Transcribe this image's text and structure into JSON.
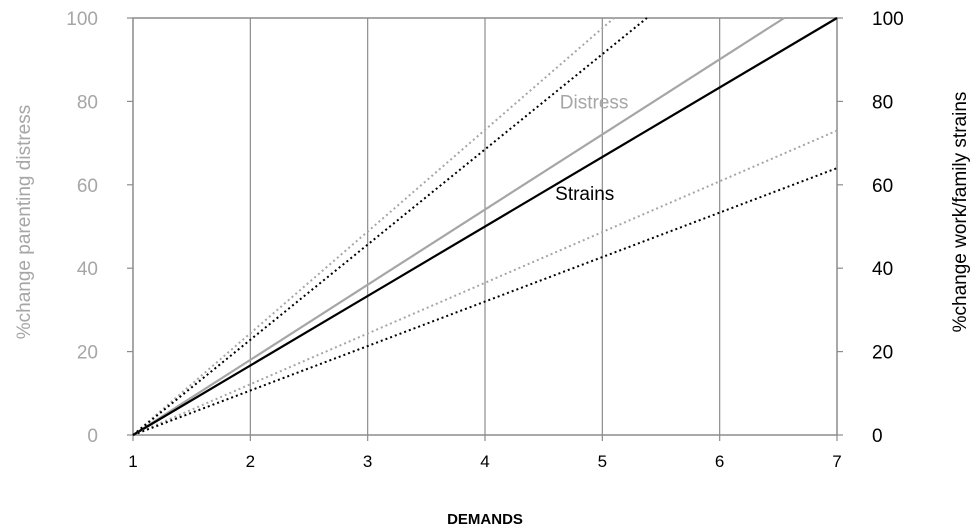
{
  "chart_data": {
    "type": "line",
    "xlabel": "DEMANDS",
    "ylabel_left": "%change parenting distress",
    "ylabel_right": "%change work/family strains",
    "xlim": [
      1,
      7
    ],
    "ylim_left": [
      0,
      100
    ],
    "ylim_right": [
      0,
      100
    ],
    "x_ticks": [
      "1",
      "2",
      "3",
      "4",
      "5",
      "6",
      "7"
    ],
    "y_ticks_left": [
      "0",
      "20",
      "40",
      "60",
      "80",
      "100"
    ],
    "y_ticks_right": [
      "0",
      "20",
      "40",
      "60",
      "80",
      "100"
    ],
    "grid": "vertical lines at x ticks",
    "legend": "none",
    "series": [
      {
        "name": "Distress",
        "axis": "left",
        "color": "#a6a6a6",
        "style": "solid",
        "x": [
          1,
          6.55
        ],
        "y": [
          0,
          100
        ]
      },
      {
        "name": "Strains",
        "axis": "right",
        "color": "#000000",
        "style": "solid",
        "x": [
          1,
          7
        ],
        "y": [
          0,
          100
        ]
      },
      {
        "axis": "left",
        "color": "#a6a6a6",
        "style": "dotted",
        "x": [
          1,
          5.1
        ],
        "y": [
          0,
          100
        ]
      },
      {
        "axis": "left",
        "color": "#a6a6a6",
        "style": "dotted",
        "x": [
          1,
          7
        ],
        "y": [
          0,
          73
        ]
      },
      {
        "axis": "right",
        "color": "#000000",
        "style": "dotted",
        "x": [
          1,
          5.38
        ],
        "y": [
          0,
          100
        ]
      },
      {
        "axis": "right",
        "color": "#000000",
        "style": "dotted",
        "x": [
          1,
          7
        ],
        "y": [
          0,
          64
        ]
      }
    ],
    "annotations": [
      {
        "text": "Distress",
        "x": 4.93,
        "y": 80,
        "color": "#a6a6a6"
      },
      {
        "text": "Strains",
        "x": 4.85,
        "y": 58,
        "color": "#000000"
      }
    ],
    "colors": {
      "left_axis": "#a6a6a6",
      "right_axis": "#000000",
      "frame": "#8c8c8c"
    }
  }
}
